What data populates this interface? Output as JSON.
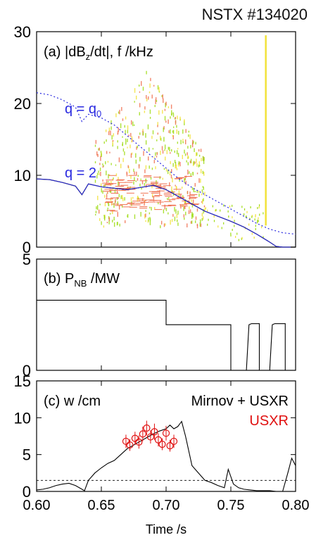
{
  "figure_title": "NSTX #134020",
  "colors": {
    "axis": "#000000",
    "q_curves": "#2a2ae0",
    "usxr": "#e01010",
    "spectro_low": "#9fdc14",
    "spectro_mid": "#f2e23a",
    "spectro_high": "#f07050"
  },
  "x_axis": {
    "label": "Time /s",
    "range": [
      0.6,
      0.8
    ],
    "ticks": [
      "0.60",
      "0.65",
      "0.70",
      "0.75",
      "0.80"
    ]
  },
  "chart_data": [
    {
      "type": "heatmap",
      "panel_label": "(a) |dB",
      "panel_label_sub": "z",
      "panel_label_rest": "/dt|, f /kHz",
      "ylim": [
        0,
        30
      ],
      "yticks": [
        "0",
        "10",
        "20",
        "30"
      ],
      "series": [
        {
          "name": "q = q",
          "name_sub": "0",
          "style": "dotted",
          "x": [
            0.6,
            0.61,
            0.62,
            0.63,
            0.635,
            0.64,
            0.65,
            0.66,
            0.67,
            0.68,
            0.69,
            0.7,
            0.71,
            0.72,
            0.73,
            0.74,
            0.75,
            0.76,
            0.77,
            0.78,
            0.79,
            0.8
          ],
          "values": [
            21.5,
            21.2,
            20.5,
            19.5,
            17.5,
            18.5,
            18.0,
            17.0,
            15.5,
            14.0,
            12.5,
            11.0,
            9.5,
            8.3,
            7.3,
            6.3,
            5.3,
            4.3,
            3.3,
            2.5,
            2.0,
            1.8
          ]
        },
        {
          "name": "q = 2",
          "style": "solid",
          "x": [
            0.6,
            0.61,
            0.62,
            0.63,
            0.635,
            0.64,
            0.65,
            0.66,
            0.67,
            0.68,
            0.69,
            0.7,
            0.71,
            0.72,
            0.73,
            0.74,
            0.75,
            0.76,
            0.77,
            0.78,
            0.785,
            0.79,
            0.8
          ],
          "values": [
            9.5,
            9.4,
            9.0,
            8.5,
            7.3,
            8.8,
            8.4,
            8.2,
            8.0,
            8.3,
            8.6,
            8.0,
            7.0,
            6.0,
            5.0,
            4.3,
            3.6,
            2.8,
            1.8,
            0.7,
            0.1,
            0.0,
            0.0
          ]
        }
      ]
    },
    {
      "type": "line",
      "panel_label": "(b) P",
      "panel_label_sub": "NB",
      "panel_label_rest": " /MW",
      "ylim": [
        0,
        5
      ],
      "yticks": [
        "0",
        "5"
      ],
      "series": [
        {
          "x": [
            0.6,
            0.7,
            0.7,
            0.75,
            0.75,
            0.762,
            0.764,
            0.766,
            0.772,
            0.772,
            0.78,
            0.782,
            0.784,
            0.792,
            0.792,
            0.8
          ],
          "values": [
            3.15,
            3.15,
            2.05,
            2.05,
            0.0,
            0.0,
            2.05,
            2.1,
            2.1,
            0.0,
            0.0,
            2.05,
            2.1,
            2.1,
            0.0,
            0.0
          ]
        }
      ]
    },
    {
      "type": "line",
      "panel_label": "(c) w /cm",
      "legend": [
        "Mirnov + USXR",
        "USXR"
      ],
      "ylim": [
        0,
        15
      ],
      "yticks": [
        "0",
        "5",
        "10",
        "15"
      ],
      "series": [
        {
          "name": "Mirnov + USXR",
          "x": [
            0.6,
            0.605,
            0.61,
            0.615,
            0.62,
            0.625,
            0.63,
            0.635,
            0.637,
            0.64,
            0.645,
            0.65,
            0.655,
            0.66,
            0.665,
            0.67,
            0.675,
            0.68,
            0.685,
            0.69,
            0.695,
            0.7,
            0.703,
            0.706,
            0.709,
            0.712,
            0.715,
            0.72,
            0.725,
            0.73,
            0.735,
            0.74,
            0.745,
            0.748,
            0.752,
            0.756,
            0.76,
            0.765,
            0.77,
            0.775,
            0.78,
            0.785,
            0.79,
            0.794,
            0.797,
            0.8
          ],
          "values": [
            0.2,
            0.3,
            0.5,
            0.8,
            1.0,
            1.1,
            0.8,
            0.3,
            0.1,
            1.5,
            2.5,
            3.2,
            3.8,
            4.2,
            5.0,
            5.8,
            6.3,
            6.8,
            7.3,
            7.8,
            8.2,
            8.5,
            9.0,
            8.5,
            8.8,
            9.5,
            7.5,
            3.5,
            2.5,
            1.5,
            1.2,
            0.8,
            0.5,
            3.0,
            1.0,
            0.5,
            0.3,
            0.2,
            0.1,
            0.1,
            0.1,
            0.0,
            0.0,
            2.5,
            4.5,
            3.5
          ]
        },
        {
          "name": "USXR",
          "style": "circles",
          "x": [
            0.669,
            0.672,
            0.676,
            0.679,
            0.682,
            0.685,
            0.688,
            0.691,
            0.694,
            0.697,
            0.7,
            0.703,
            0.706
          ],
          "values": [
            6.8,
            6.3,
            7.2,
            6.7,
            7.8,
            8.6,
            7.4,
            8.1,
            7.0,
            6.4,
            7.9,
            6.2,
            6.8
          ],
          "errors": [
            0.9,
            0.8,
            0.9,
            0.9,
            1.0,
            1.0,
            0.9,
            1.1,
            0.9,
            0.8,
            1.0,
            0.8,
            0.9
          ]
        },
        {
          "name": "reference",
          "style": "dashed",
          "x": [
            0.6,
            0.8
          ],
          "values": [
            1.5,
            1.5
          ]
        }
      ]
    }
  ]
}
